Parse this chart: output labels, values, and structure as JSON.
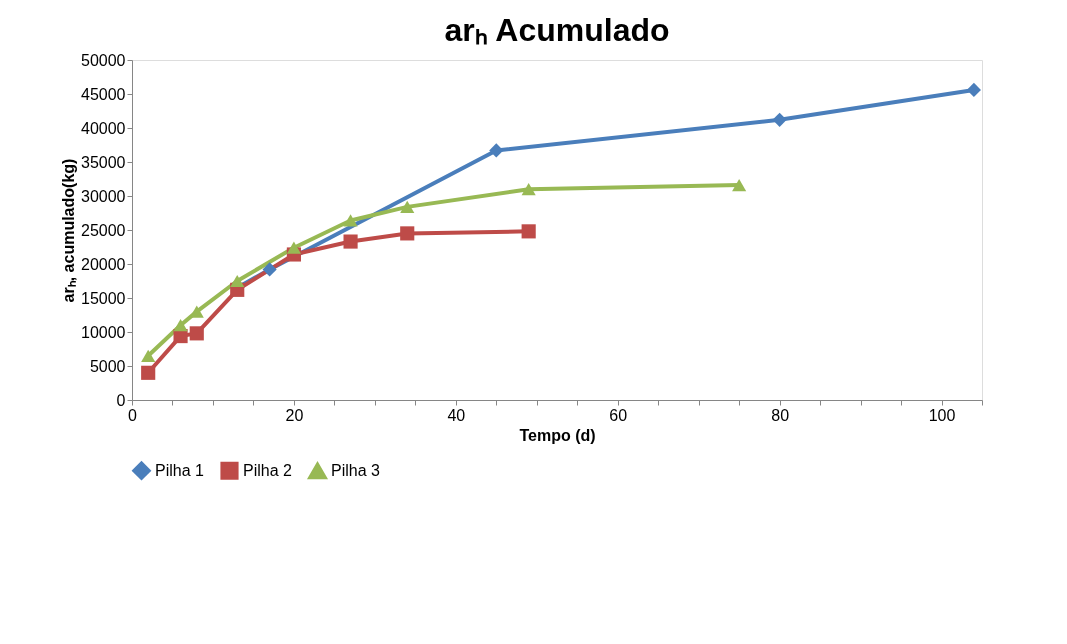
{
  "chart_data": {
    "type": "line",
    "title": "arₕ Acumulado",
    "xlabel": "Tempo (d)",
    "ylabel": "arₕ, acumulado(kg)",
    "xlim": [
      0,
      105
    ],
    "xticks": [
      0,
      {
        "value": 5,
        "label": null
      },
      {
        "value": 10,
        "label": null
      },
      {
        "value": 15,
        "label": null
      },
      20,
      {
        "value": 25,
        "label": null
      },
      {
        "value": 30,
        "label": null
      },
      {
        "value": 35,
        "label": null
      },
      40,
      {
        "value": 45,
        "label": null
      },
      {
        "value": 50,
        "label": null
      },
      {
        "value": 55,
        "label": null
      },
      60,
      {
        "value": 65,
        "label": null
      },
      {
        "value": 70,
        "label": null
      },
      {
        "value": 75,
        "label": null
      },
      80,
      {
        "value": 85,
        "label": null
      },
      {
        "value": 90,
        "label": null
      },
      {
        "value": 95,
        "label": null
      },
      100,
      {
        "value": 105,
        "label": null
      }
    ],
    "ylim": [
      0,
      50000
    ],
    "yticks": [
      0,
      5000,
      10000,
      15000,
      20000,
      25000,
      30000,
      35000,
      40000,
      45000,
      50000
    ],
    "grid": false,
    "legend": "bottom",
    "line_style": "solid",
    "series": [
      {
        "name": "Pilha 1",
        "color": "#4a7ebb",
        "marker": "diamond",
        "x": [
          13,
          17,
          45,
          80,
          104
        ],
        "values": [
          16500,
          19200,
          36700,
          41200,
          45600
        ]
      },
      {
        "name": "Pilha 2",
        "color": "#be4b48",
        "marker": "square",
        "x": [
          2,
          6,
          8,
          13,
          20,
          27,
          34,
          49
        ],
        "values": [
          4000,
          9400,
          9800,
          16200,
          21400,
          23300,
          24500,
          24800
        ]
      },
      {
        "name": "Pilha 3",
        "color": "#98b954",
        "marker": "triangle",
        "x": [
          2,
          6,
          8,
          13,
          20,
          27,
          34,
          49,
          75
        ],
        "values": [
          6500,
          11000,
          13000,
          17500,
          22400,
          26400,
          28400,
          31000,
          31600
        ]
      }
    ]
  }
}
